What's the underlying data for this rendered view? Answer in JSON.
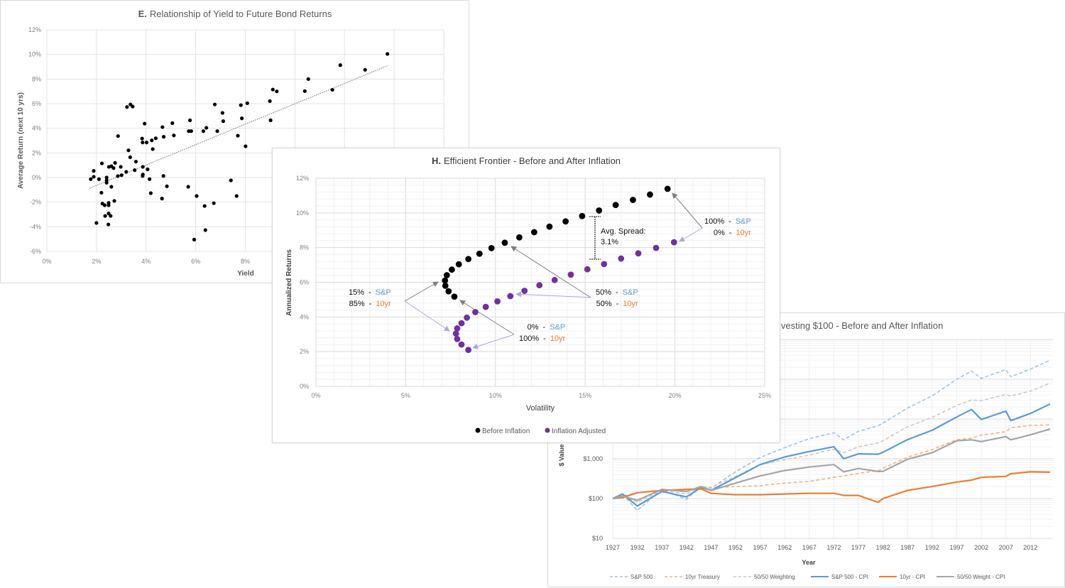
{
  "chart_data": [
    {
      "type": "scatter",
      "title_prefix": "E.",
      "title": "Relationship of Yield to Future Bond Returns",
      "xlabel": "Yield",
      "ylabel": "Average Return (next 10 yrs)",
      "xlim": [
        0,
        16
      ],
      "ylim": [
        -6,
        12
      ],
      "x_ticks": [
        "0%",
        "2%",
        "4%",
        "6%",
        "8%"
      ],
      "y_ticks": [
        "12%",
        "10%",
        "8%",
        "6%",
        "4%",
        "2%",
        "0%",
        "-2%",
        "-4%",
        "-6%"
      ],
      "grid": true,
      "point_color": "#000000",
      "trendline": {
        "style": "dotted",
        "from": [
          1.72,
          -0.87
        ],
        "to": [
          13.73,
          9.08
        ]
      },
      "points": [
        [
          1.77,
          -0.13
        ],
        [
          1.89,
          0.06
        ],
        [
          1.89,
          0.54
        ],
        [
          2.1,
          -0.13
        ],
        [
          2.22,
          1.15
        ],
        [
          2.2,
          -1.23
        ],
        [
          2.0,
          -3.69
        ],
        [
          2.24,
          -2.12
        ],
        [
          2.33,
          -2.25
        ],
        [
          2.35,
          -3.12
        ],
        [
          2.41,
          0.0
        ],
        [
          2.41,
          -0.23
        ],
        [
          2.41,
          -0.42
        ],
        [
          2.49,
          -2.06
        ],
        [
          2.49,
          -2.25
        ],
        [
          2.49,
          -2.92
        ],
        [
          2.48,
          -3.81
        ],
        [
          2.57,
          -3.12
        ],
        [
          2.5,
          0.87
        ],
        [
          2.6,
          0.92
        ],
        [
          2.69,
          0.77
        ],
        [
          2.6,
          -0.75
        ],
        [
          2.75,
          1.19
        ],
        [
          2.72,
          -1.9
        ],
        [
          2.86,
          0.12
        ],
        [
          2.87,
          3.37
        ],
        [
          2.98,
          0.87
        ],
        [
          3.01,
          0.19
        ],
        [
          3.2,
          0.46
        ],
        [
          3.23,
          5.73
        ],
        [
          3.37,
          5.94
        ],
        [
          3.46,
          5.77
        ],
        [
          3.29,
          2.21
        ],
        [
          3.36,
          1.65
        ],
        [
          3.59,
          1.29
        ],
        [
          3.54,
          0.6
        ],
        [
          3.84,
          3.17
        ],
        [
          3.86,
          2.85
        ],
        [
          3.87,
          0.87
        ],
        [
          3.87,
          0.25
        ],
        [
          3.86,
          0.13
        ],
        [
          3.94,
          4.38
        ],
        [
          4.02,
          2.85
        ],
        [
          4.06,
          0.67
        ],
        [
          4.14,
          -0.13
        ],
        [
          4.19,
          -1.27
        ],
        [
          4.23,
          3.02
        ],
        [
          4.27,
          2.31
        ],
        [
          4.39,
          3.19
        ],
        [
          4.66,
          4.1
        ],
        [
          4.64,
          -1.71
        ],
        [
          4.7,
          0.13
        ],
        [
          4.71,
          3.31
        ],
        [
          4.84,
          -0.71
        ],
        [
          5.06,
          4.42
        ],
        [
          5.12,
          3.42
        ],
        [
          5.7,
          -0.75
        ],
        [
          5.72,
          3.77
        ],
        [
          5.82,
          3.77
        ],
        [
          5.77,
          4.65
        ],
        [
          5.94,
          -5.04
        ],
        [
          6.04,
          -1.5
        ],
        [
          6.31,
          3.77
        ],
        [
          6.36,
          -2.31
        ],
        [
          6.43,
          4.04
        ],
        [
          6.39,
          -4.27
        ],
        [
          6.73,
          -2.08
        ],
        [
          6.77,
          5.94
        ],
        [
          6.87,
          3.77
        ],
        [
          7.08,
          5.25
        ],
        [
          7.11,
          4.58
        ],
        [
          7.42,
          -0.23
        ],
        [
          7.65,
          -1.5
        ],
        [
          7.7,
          3.4
        ],
        [
          7.82,
          5.88
        ],
        [
          7.86,
          4.81
        ],
        [
          8.01,
          2.54
        ],
        [
          8.08,
          6.04
        ],
        [
          8.99,
          6.21
        ],
        [
          9.02,
          4.65
        ],
        [
          9.11,
          7.15
        ],
        [
          9.27,
          7.0
        ],
        [
          10.4,
          7.02
        ],
        [
          10.54,
          8.0
        ],
        [
          11.51,
          7.13
        ],
        [
          11.83,
          9.13
        ],
        [
          12.83,
          8.75
        ],
        [
          13.73,
          10.04
        ]
      ]
    },
    {
      "type": "scatter",
      "title_prefix": "H.",
      "title": "Efficient Frontier - Before and After Inflation",
      "xlabel": "Volatility",
      "ylabel": "Annualized Returns",
      "xlim": [
        0,
        25
      ],
      "ylim": [
        0,
        12
      ],
      "x_ticks": [
        "0%",
        "5%",
        "10%",
        "15%",
        "20%",
        "25%"
      ],
      "y_ticks": [
        "12%",
        "10%",
        "8%",
        "6%",
        "4%",
        "2%",
        "0%"
      ],
      "grid": true,
      "legend_position": "bottom",
      "series": [
        {
          "name": "Before Inflation",
          "color": "#000000",
          "points": [
            [
              7.71,
              5.17
            ],
            [
              7.39,
              5.48
            ],
            [
              7.21,
              5.8
            ],
            [
              7.19,
              6.1
            ],
            [
              7.29,
              6.41
            ],
            [
              7.57,
              6.73
            ],
            [
              7.96,
              7.04
            ],
            [
              8.49,
              7.34
            ],
            [
              9.11,
              7.65
            ],
            [
              9.78,
              7.97
            ],
            [
              10.52,
              8.28
            ],
            [
              11.33,
              8.59
            ],
            [
              12.16,
              8.89
            ],
            [
              13.01,
              9.21
            ],
            [
              13.91,
              9.51
            ],
            [
              14.83,
              9.82
            ],
            [
              15.77,
              10.14
            ],
            [
              16.7,
              10.46
            ],
            [
              17.66,
              10.75
            ],
            [
              18.61,
              11.06
            ],
            [
              19.59,
              11.39
            ]
          ]
        },
        {
          "name": "Inflation Adjusted",
          "color": "#7030a0",
          "points": [
            [
              8.49,
              2.1
            ],
            [
              8.11,
              2.41
            ],
            [
              7.87,
              2.73
            ],
            [
              7.8,
              3.04
            ],
            [
              7.87,
              3.34
            ],
            [
              8.11,
              3.64
            ],
            [
              8.41,
              3.96
            ],
            [
              8.88,
              4.28
            ],
            [
              9.46,
              4.58
            ],
            [
              10.11,
              4.9
            ],
            [
              10.83,
              5.2
            ],
            [
              11.62,
              5.51
            ],
            [
              12.45,
              5.83
            ],
            [
              13.3,
              6.13
            ],
            [
              14.2,
              6.44
            ],
            [
              15.12,
              6.75
            ],
            [
              16.05,
              7.05
            ],
            [
              17.0,
              7.37
            ],
            [
              17.96,
              7.67
            ],
            [
              18.95,
              7.98
            ],
            [
              19.95,
              8.31
            ]
          ]
        }
      ],
      "spread_annotation": {
        "line1": "Avg. Spread:",
        "line2": "3.1%"
      },
      "annotations": [
        {
          "sp_pct": "100%",
          "sp_label": "S&P",
          "bond_pct": "0%",
          "bond_label": "10yr"
        },
        {
          "sp_pct": "15%",
          "sp_label": "S&P",
          "bond_pct": "85%",
          "bond_label": "10yr"
        },
        {
          "sp_pct": "50%",
          "sp_label": "S&P",
          "bond_pct": "50%",
          "bond_label": "10yr"
        },
        {
          "sp_pct": "0%",
          "sp_label": "S&P",
          "bond_pct": "100%",
          "bond_label": "10yr"
        }
      ],
      "annotation_colors": {
        "sp": "#5b9bd5",
        "bond": "#ed7d31"
      }
    },
    {
      "type": "line",
      "title": "vesting $100 - Before and After Inflation",
      "xlabel": "Year",
      "ylabel": "$ Value",
      "y_scale": "log",
      "ylim": [
        10,
        1000000
      ],
      "xlim": [
        1927,
        2016
      ],
      "x_ticks": [
        "1927",
        "1932",
        "1937",
        "1942",
        "1947",
        "1952",
        "1957",
        "1962",
        "1967",
        "1972",
        "1977",
        "1982",
        "1987",
        "1992",
        "1997",
        "2002",
        "2007",
        "2012"
      ],
      "y_ticks": [
        "$1,000",
        "$100",
        "$10"
      ],
      "grid": true,
      "legend_position": "bottom",
      "x": [
        1927,
        1929,
        1932,
        1937,
        1942,
        1945,
        1947,
        1952,
        1957,
        1962,
        1967,
        1972,
        1974,
        1977,
        1981,
        1982,
        1987,
        1992,
        1997,
        2000,
        2002,
        2007,
        2008,
        2012,
        2016
      ],
      "series": [
        {
          "name": "S&P 500",
          "color": "#9dc3e6",
          "dashed": true,
          "values": [
            100,
            130,
            50,
            170,
            95,
            200,
            180,
            470,
            1080,
            1900,
            3200,
            4500,
            3000,
            4900,
            6800,
            7900,
            19000,
            38000,
            100000,
            160000,
            105000,
            175000,
            115000,
            180000,
            300000
          ]
        },
        {
          "name": "10yr Treasury",
          "color": "#f4b183",
          "dashed": true,
          "values": [
            100,
            115,
            140,
            160,
            170,
            180,
            185,
            200,
            210,
            245,
            270,
            340,
            370,
            430,
            500,
            580,
            1100,
            1700,
            3000,
            3300,
            3900,
            4800,
            6000,
            6900,
            7100
          ]
        },
        {
          "name": "50/50 Weighting",
          "color": "#c9c9c9",
          "dashed": true,
          "values": [
            100,
            120,
            80,
            160,
            130,
            200,
            190,
            360,
            710,
            940,
            1240,
            1740,
            1420,
            2000,
            2500,
            2830,
            6400,
            11000,
            22000,
            30000,
            29000,
            41000,
            38000,
            50000,
            80000
          ]
        },
        {
          "name": "S&P 500 - CPI",
          "color": "#5b9bd5",
          "dashed": false,
          "values": [
            100,
            130,
            65,
            150,
            110,
            190,
            160,
            335,
            715,
            1110,
            1520,
            2000,
            1000,
            1330,
            1300,
            1460,
            3030,
            5200,
            11200,
            17300,
            9700,
            15800,
            9100,
            13800,
            23800
          ]
        },
        {
          "name": "10yr - CPI",
          "color": "#ed7d31",
          "dashed": false,
          "values": [
            100,
            105,
            140,
            160,
            170,
            175,
            135,
            125,
            125,
            130,
            135,
            135,
            120,
            120,
            80,
            100,
            160,
            200,
            260,
            290,
            340,
            360,
            420,
            470,
            460
          ]
        },
        {
          "name": "50/50 Weight - CPI",
          "color": "#a5a5a5",
          "dashed": false,
          "values": [
            100,
            115,
            90,
            170,
            150,
            200,
            160,
            244,
            370,
            505,
            620,
            715,
            470,
            570,
            480,
            485,
            970,
            1420,
            2830,
            3000,
            2700,
            3600,
            3000,
            4000,
            5600
          ]
        }
      ]
    }
  ]
}
